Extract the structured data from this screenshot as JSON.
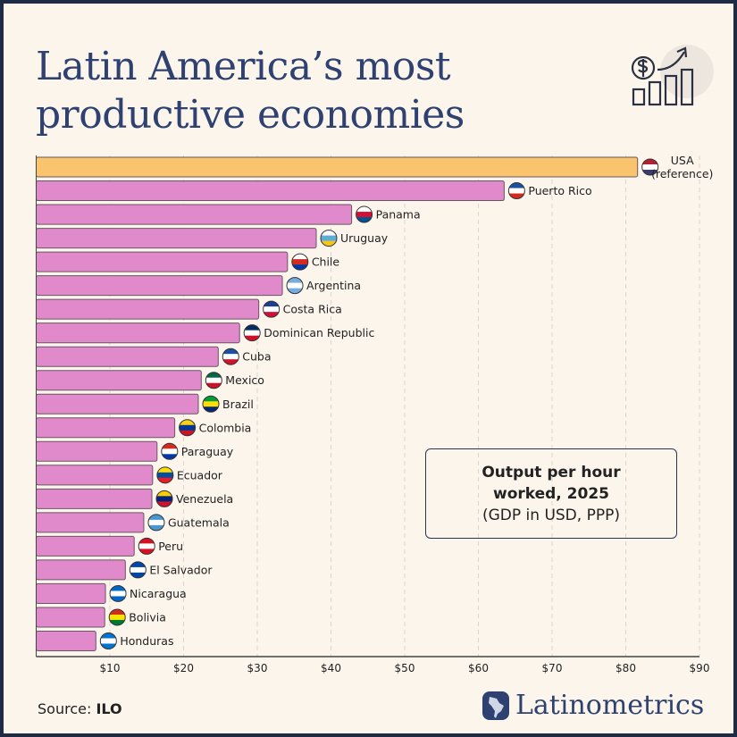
{
  "header": {
    "title_line1": "Latin America’s most",
    "title_line2": "productive economies",
    "icon": "money-growth-chart-icon"
  },
  "legend": {
    "line1": "Output per hour",
    "line2": "worked, 2025",
    "line3": "(GDP in USD, PPP)"
  },
  "footer": {
    "source_label": "Source:",
    "source_value": "ILO",
    "brand": "Latinometrics",
    "brand_icon": "latin-america-map-icon"
  },
  "colors": {
    "background": "#fbf5ec",
    "reference_bar": "#f9c46b",
    "bar": "#e08acb",
    "title": "#2e4170",
    "border": "#1f2a44"
  },
  "chart_data": {
    "type": "bar",
    "orientation": "horizontal",
    "title": "",
    "xlabel": "",
    "ylabel": "",
    "xlim": [
      0,
      90
    ],
    "x_ticks": [
      "$10",
      "$20",
      "$30",
      "$40",
      "$50",
      "$60",
      "$70",
      "$80",
      "$90"
    ],
    "grid": "vertical dashed",
    "categories": [
      "USA\n(reference)",
      "Puerto Rico",
      "Panama",
      "Uruguay",
      "Chile",
      "Argentina",
      "Costa Rica",
      "Dominican Republic",
      "Cuba",
      "Mexico",
      "Brazil",
      "Colombia",
      "Paraguay",
      "Ecuador",
      "Venezuela",
      "Guatemala",
      "Peru",
      "El Salvador",
      "Nicaragua",
      "Bolivia",
      "Honduras"
    ],
    "values": [
      81.6,
      63.5,
      42.8,
      38.0,
      34.1,
      33.4,
      30.2,
      27.6,
      24.7,
      22.4,
      22.0,
      18.8,
      16.4,
      15.8,
      15.7,
      14.6,
      13.3,
      12.1,
      9.4,
      9.3,
      8.1
    ],
    "flag_colors": [
      [
        "#b22234",
        "#ffffff",
        "#3c3b6e"
      ],
      [
        "#1d4fa0",
        "#ffffff",
        "#d52b1e"
      ],
      [
        "#ffffff",
        "#d21034",
        "#005293"
      ],
      [
        "#ffffff",
        "#5bacd9",
        "#f5c518"
      ],
      [
        "#ffffff",
        "#d52b1e",
        "#0039a6"
      ],
      [
        "#74acdf",
        "#ffffff",
        "#74acdf"
      ],
      [
        "#1d3f8f",
        "#ffffff",
        "#d21034"
      ],
      [
        "#002d62",
        "#ffffff",
        "#ce1126"
      ],
      [
        "#1d4fa0",
        "#ffffff",
        "#cf142b"
      ],
      [
        "#006847",
        "#ffffff",
        "#ce1126"
      ],
      [
        "#009c3b",
        "#ffdf00",
        "#002776"
      ],
      [
        "#fcd116",
        "#003893",
        "#ce1126"
      ],
      [
        "#d52b1e",
        "#ffffff",
        "#0038a8"
      ],
      [
        "#ffdd00",
        "#034ea2",
        "#ed1c24"
      ],
      [
        "#ffcc00",
        "#00247d",
        "#cf142b"
      ],
      [
        "#4997d0",
        "#ffffff",
        "#4997d0"
      ],
      [
        "#d91023",
        "#ffffff",
        "#d91023"
      ],
      [
        "#0047ab",
        "#ffffff",
        "#0047ab"
      ],
      [
        "#0067c6",
        "#ffffff",
        "#0067c6"
      ],
      [
        "#d52b1e",
        "#f9e300",
        "#007934"
      ],
      [
        "#0073cf",
        "#ffffff",
        "#0073cf"
      ]
    ]
  }
}
